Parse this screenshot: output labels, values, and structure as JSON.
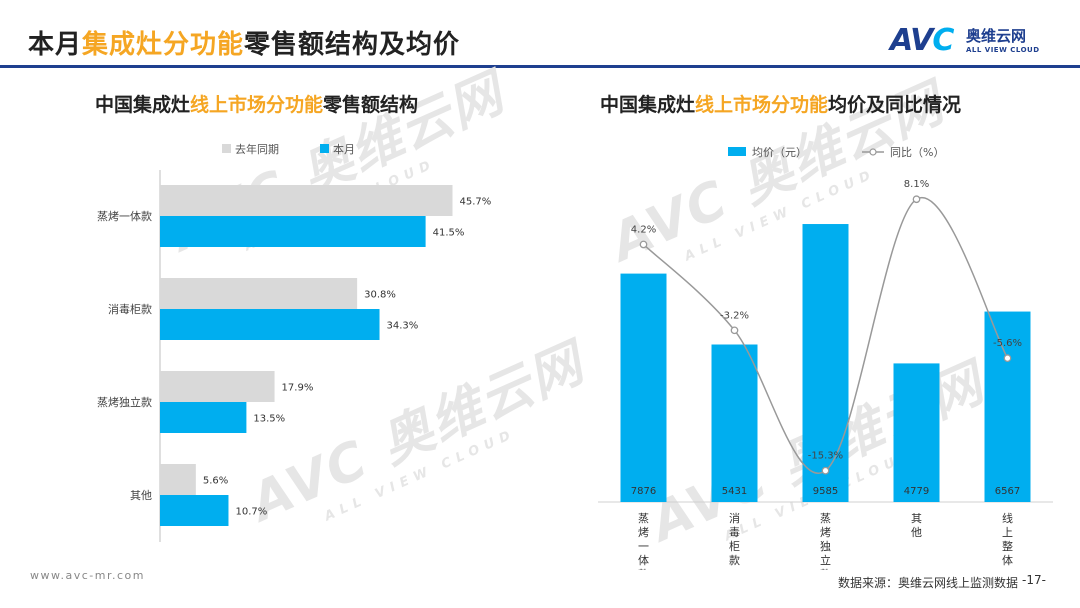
{
  "header": {
    "title_pre": "本月",
    "title_accent": "集成灶分功能",
    "title_post": "零售额结构及均价"
  },
  "logo": {
    "mark": "AVC",
    "mark_a": "AV",
    "mark_c": "C",
    "name_cn": "奥维云网",
    "name_en": "ALL VIEW CLOUD"
  },
  "watermark": {
    "big": "AVC 奥维云网",
    "small": "ALL VIEW CLOUD"
  },
  "colors": {
    "accent": "#f5a623",
    "brand": "#1e3f8f",
    "current": "#00aeef",
    "prior": "#d9d9d9",
    "line": "#999999"
  },
  "left": {
    "title_pre": "中国集成灶",
    "title_accent": "线上市场分功能",
    "title_post": "零售额结构"
  },
  "right": {
    "title_pre": "中国集成灶",
    "title_accent": "线上市场分功能",
    "title_post": "均价及同比情况"
  },
  "chart_data": [
    {
      "type": "bar",
      "orientation": "horizontal",
      "title": "中国集成灶线上市场分功能零售额结构",
      "categories": [
        "蒸烤一体款",
        "消毒柜款",
        "蒸烤独立款",
        "其他"
      ],
      "series": [
        {
          "name": "去年同期",
          "values": [
            45.7,
            30.8,
            17.9,
            5.6
          ],
          "labels": [
            "45.7%",
            "30.8%",
            "17.9%",
            "5.6%"
          ]
        },
        {
          "name": "本月",
          "values": [
            41.5,
            34.3,
            13.5,
            10.7
          ],
          "labels": [
            "41.5%",
            "34.3%",
            "13.5%",
            "10.7%"
          ]
        }
      ],
      "xlim": [
        0,
        50
      ],
      "legend": "top-left"
    },
    {
      "type": "bar",
      "title": "中国集成灶线上市场分功能均价及同比情况",
      "categories": [
        "蒸烤一体款",
        "消毒柜款",
        "蒸烤独立款",
        "其他",
        "线上整体"
      ],
      "series": [
        {
          "name": "均价（元）",
          "type": "bar",
          "values": [
            7876,
            5431,
            9585,
            4779,
            6567
          ],
          "labels": [
            "7876",
            "5431",
            "9585",
            "4779",
            "6567"
          ]
        },
        {
          "name": "同比（%）",
          "type": "line",
          "values": [
            4.2,
            -3.2,
            -15.3,
            8.1,
            -5.6
          ],
          "labels": [
            "4.2%",
            "-3.2%",
            "-15.3%",
            "8.1%",
            "-5.6%"
          ]
        }
      ],
      "ylim_bar": [
        0,
        12000
      ],
      "ylim_line": [
        -18,
        12
      ],
      "legend": "top-center"
    }
  ],
  "footer": {
    "url": "www.avc-mr.com",
    "source": "数据来源：奥维云网线上监测数据",
    "page": "-17-"
  }
}
